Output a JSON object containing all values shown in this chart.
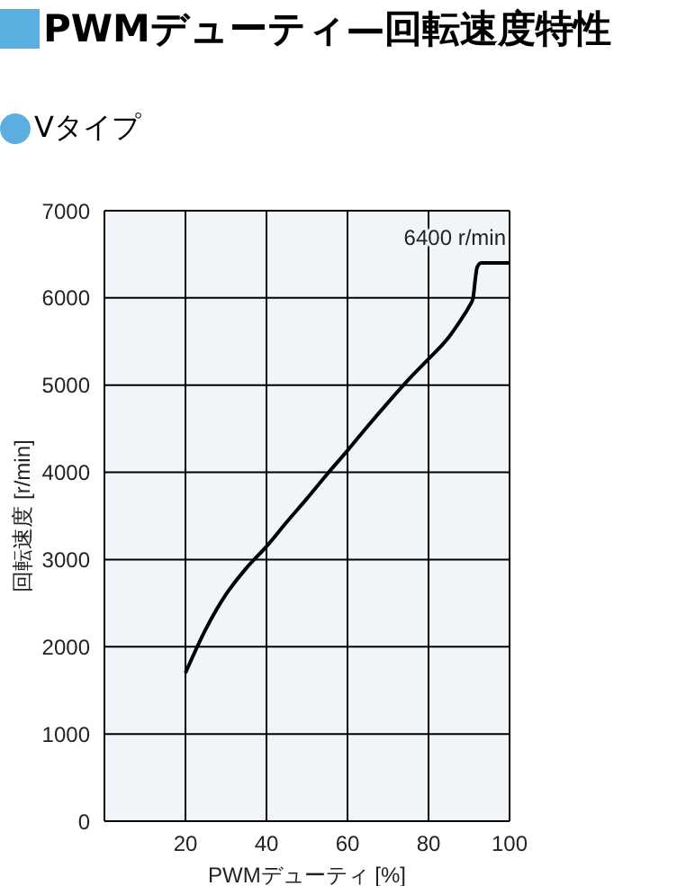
{
  "chart_data": {
    "type": "line",
    "title": "PWMデューティ—回転速度特性",
    "subtitle": "Vタイプ",
    "xlabel": "PWMデューティ [%]",
    "ylabel": "回転速度 [r/min]",
    "annotations": [
      {
        "text": "6400 r/min",
        "x": 100,
        "y": 6400
      }
    ],
    "x": [
      20,
      25,
      30,
      35,
      40,
      45,
      50,
      55,
      60,
      65,
      70,
      75,
      80,
      85,
      88,
      90,
      91,
      91.5,
      92,
      93,
      100
    ],
    "series": [
      {
        "color": "#000000",
        "values": [
          1700,
          2200,
          2600,
          2900,
          3150,
          3430,
          3700,
          3980,
          4250,
          4530,
          4800,
          5060,
          5300,
          5550,
          5750,
          5900,
          6000,
          6200,
          6350,
          6400,
          6400
        ]
      }
    ],
    "xlim": [
      0,
      100
    ],
    "xticks": [
      20,
      40,
      60,
      80,
      100
    ],
    "ylim": [
      0,
      7000
    ],
    "yticks": [
      0,
      1000,
      2000,
      3000,
      4000,
      5000,
      6000,
      7000
    ],
    "grid": true,
    "marker": "none",
    "line_style": "solid"
  }
}
